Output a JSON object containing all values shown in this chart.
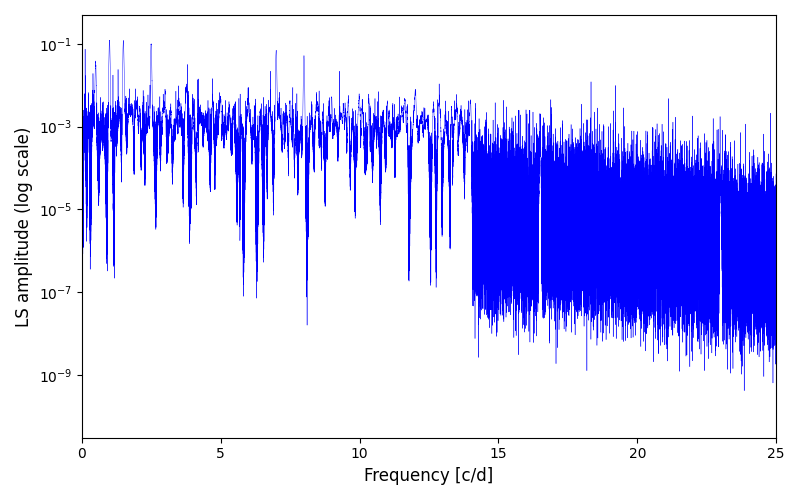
{
  "title": "",
  "xlabel": "Frequency [c/d]",
  "ylabel": "LS amplitude (log scale)",
  "xlim": [
    0,
    25
  ],
  "ylim_low": 3e-11,
  "ylim_high": 0.5,
  "xticks": [
    0,
    5,
    10,
    15,
    20,
    25
  ],
  "yticks_labels": [
    "$10^{-9}$",
    "$10^{-7}$",
    "$10^{-5}$",
    "$10^{-3}$",
    "$10^{-1}$"
  ],
  "line_color": "#0000ff",
  "line_width": 0.3,
  "background_color": "#ffffff",
  "figsize": [
    8.0,
    5.0
  ],
  "dpi": 100,
  "seed": 12345,
  "num_points": 80000,
  "freq_max": 25.0
}
